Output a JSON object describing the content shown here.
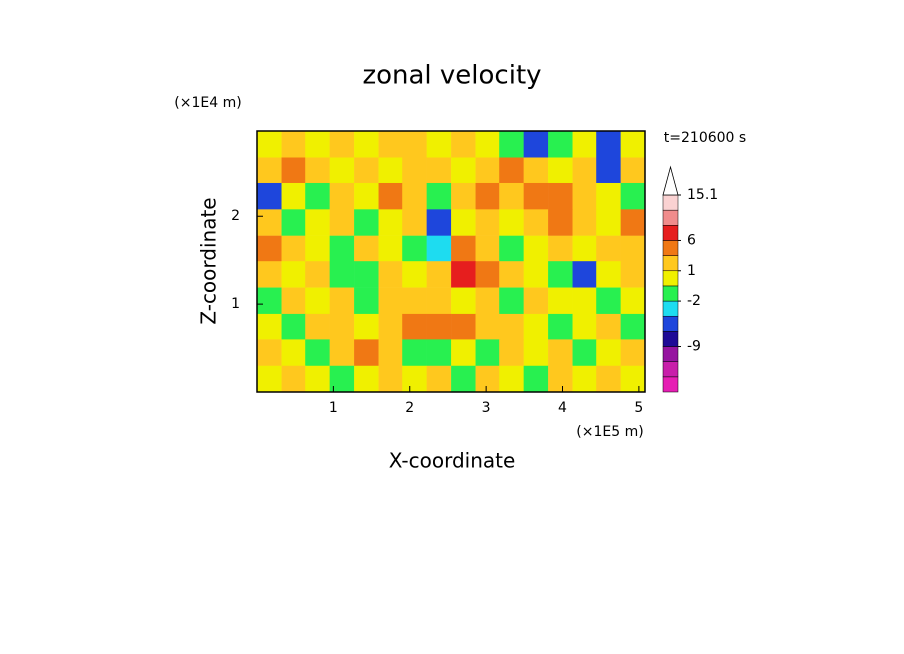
{
  "chart_data": {
    "type": "contour",
    "title": "zonal velocity",
    "x_label": "X-coordinate",
    "y_label": "Z-coordinate",
    "x_unit": "(×1E5 m)",
    "y_unit": "(×1E4 m)",
    "time_label": "t=210600 s",
    "xlim": [
      0,
      5.08
    ],
    "ylim": [
      0,
      2.97
    ],
    "xticks": [
      1,
      2,
      3,
      4,
      5
    ],
    "yticks": [
      1,
      2
    ],
    "x": [
      0.16,
      0.48,
      0.79,
      1.11,
      1.43,
      1.75,
      2.06,
      2.38,
      2.7,
      3.02,
      3.33,
      3.65,
      3.97,
      4.29,
      4.6,
      4.92
    ],
    "z": [
      2.82,
      2.52,
      2.23,
      1.93,
      1.63,
      1.34,
      1.04,
      0.74,
      0.45,
      0.15
    ],
    "values": [
      [
        0.5,
        2,
        0.5,
        2,
        0.5,
        2,
        2,
        0.5,
        2,
        0.5,
        -1,
        -5,
        -1,
        0.5,
        -5,
        0.5
      ],
      [
        2,
        4.5,
        2,
        0.5,
        2,
        0.5,
        2,
        2,
        0.5,
        2,
        4.5,
        2,
        0.5,
        2,
        -5,
        2
      ],
      [
        -5,
        0.5,
        -1,
        2,
        0.5,
        4.5,
        2,
        -1,
        2,
        4.5,
        2,
        4.5,
        4.5,
        2,
        0.5,
        -1
      ],
      [
        2,
        -1,
        0.5,
        2,
        -1,
        0.5,
        2,
        -5,
        0.5,
        2,
        0.5,
        2,
        4.5,
        2,
        0.5,
        4.5
      ],
      [
        4.5,
        2,
        0.5,
        -1,
        2,
        0.5,
        -1,
        -3,
        4.5,
        2,
        -1,
        0.5,
        2,
        0.5,
        2,
        2
      ],
      [
        2,
        0.5,
        2,
        -1,
        -1,
        2,
        0.5,
        2,
        7.5,
        4.5,
        2,
        0.5,
        -1,
        -5,
        0.5,
        2
      ],
      [
        -1,
        2,
        0.5,
        2,
        -1,
        2,
        2,
        2,
        0.5,
        2,
        -1,
        2,
        0.5,
        0.5,
        -1,
        0.5
      ],
      [
        0.5,
        -1,
        2,
        2,
        0.5,
        2,
        4.5,
        4.5,
        4.5,
        2,
        2,
        0.5,
        -1,
        0.5,
        2,
        -1
      ],
      [
        2,
        0.5,
        -1,
        2,
        4.5,
        2,
        -1,
        -1,
        0.5,
        -1,
        2,
        0.5,
        2,
        -1,
        0.5,
        2
      ],
      [
        0.5,
        2,
        0.5,
        -1,
        0.5,
        2,
        0.5,
        2,
        -1,
        2,
        0.5,
        -1,
        2,
        0.5,
        2,
        0.5
      ]
    ],
    "colorbar": {
      "levels": [
        -18,
        -15,
        -12,
        -9,
        -6,
        -4,
        -2,
        0,
        1,
        3,
        6,
        9,
        12,
        15.1
      ],
      "colors": [
        "#e61eb4",
        "#c81eaa",
        "#9614a0",
        "#1e0a96",
        "#1e46dc",
        "#1edcf0",
        "#28f050",
        "#f0f000",
        "#ffc81e",
        "#f07814",
        "#e61e1e",
        "#f08c8c",
        "#fad2d2"
      ],
      "ticks": [
        15.1,
        6,
        1,
        -2,
        -9
      ]
    }
  }
}
